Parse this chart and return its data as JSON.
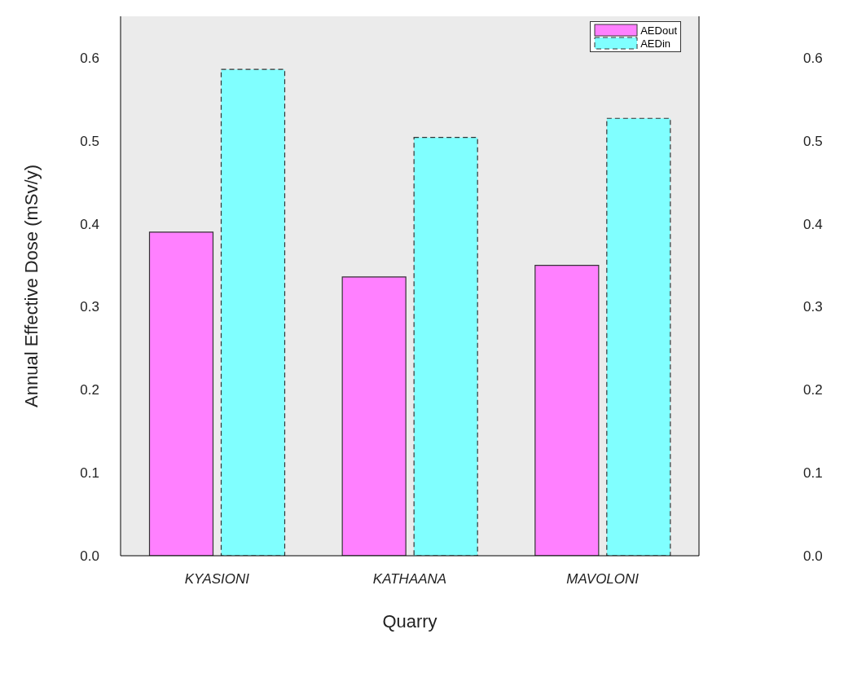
{
  "chart_data": {
    "type": "bar",
    "xlabel": "Quarry",
    "ylabel": "Annual Effective Dose (mSv/y)",
    "categories": [
      "KYASIONI",
      "KATHAANA",
      "MAVOLONI"
    ],
    "series": [
      {
        "name": "AEDout",
        "color": "#ff80ff",
        "values": [
          0.39,
          0.336,
          0.35
        ]
      },
      {
        "name": "AEDin",
        "color": "#80ffff",
        "values": [
          0.586,
          0.504,
          0.527
        ],
        "line_style": "dashed"
      }
    ],
    "ylim": [
      0,
      0.65
    ],
    "yticks": [
      {
        "value": 0,
        "label": "0.0"
      },
      0.1,
      0.2,
      0.3,
      0.4,
      0.5,
      0.6
    ],
    "y2lim": [
      0,
      0.65
    ],
    "y2ticks": [
      {
        "value": 0,
        "label": "0.0"
      },
      0.1,
      0.2,
      0.3,
      0.4,
      0.5,
      0.6
    ],
    "grid": false,
    "legend": "top right"
  }
}
